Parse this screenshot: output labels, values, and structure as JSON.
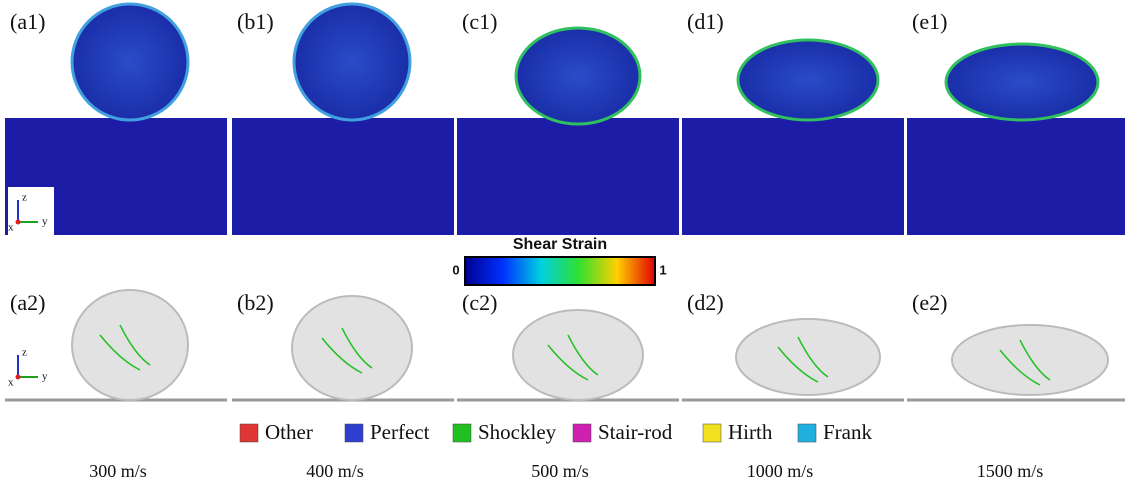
{
  "panels_top": [
    "(a1)",
    "(b1)",
    "(c1)",
    "(d1)",
    "(e1)"
  ],
  "panels_bottom": [
    "(a2)",
    "(b2)",
    "(c2)",
    "(d2)",
    "(e2)"
  ],
  "colorbar": {
    "title": "Shear Strain",
    "min": 0,
    "max": 1
  },
  "legend": [
    {
      "label": "Other",
      "color": "#e03535"
    },
    {
      "label": "Perfect",
      "color": "#2f3fd0"
    },
    {
      "label": "Shockley",
      "color": "#22c022"
    },
    {
      "label": "Stair-rod",
      "color": "#d020b0"
    },
    {
      "label": "Hirth",
      "color": "#f0e020"
    },
    {
      "label": "Frank",
      "color": "#20b0e0"
    }
  ],
  "velocities": [
    "300 m/s",
    "400 m/s",
    "500 m/s",
    "1000 m/s",
    "1500 m/s"
  ],
  "axis_triad": {
    "z": "z",
    "y": "y",
    "x": "x"
  }
}
